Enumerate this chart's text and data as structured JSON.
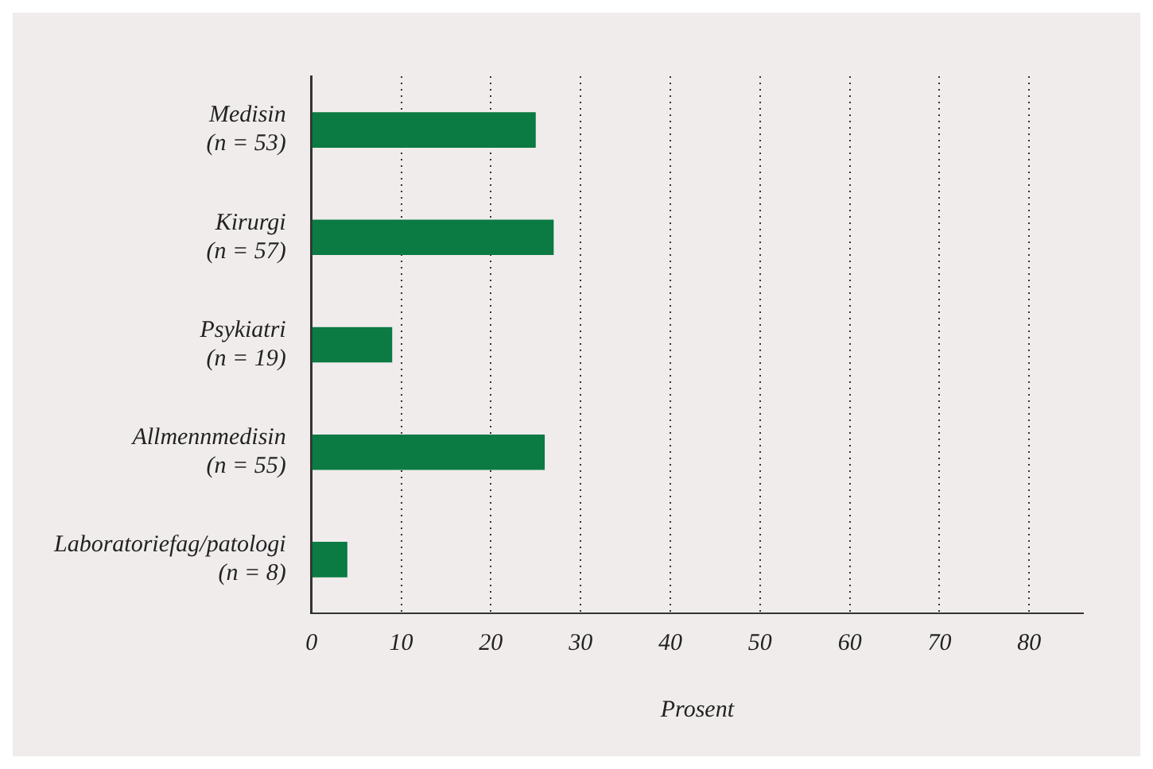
{
  "chart_data": {
    "type": "bar",
    "orientation": "horizontal",
    "xlabel": "Prosent",
    "categories": [
      "Medisin\n(n = 53)",
      "Kirurgi\n(n = 57)",
      "Psykiatri\n(n = 19)",
      "Allmennmedisin\n(n = 55)",
      "Laboratoriefag/patologi\n(n = 8)"
    ],
    "values": [
      25,
      27,
      9,
      26,
      4
    ],
    "color": "#0b7a43",
    "xlim": [
      0,
      86
    ],
    "xticks": [
      0,
      10,
      20,
      30,
      40,
      50,
      60,
      70,
      80
    ],
    "grid": "x"
  }
}
